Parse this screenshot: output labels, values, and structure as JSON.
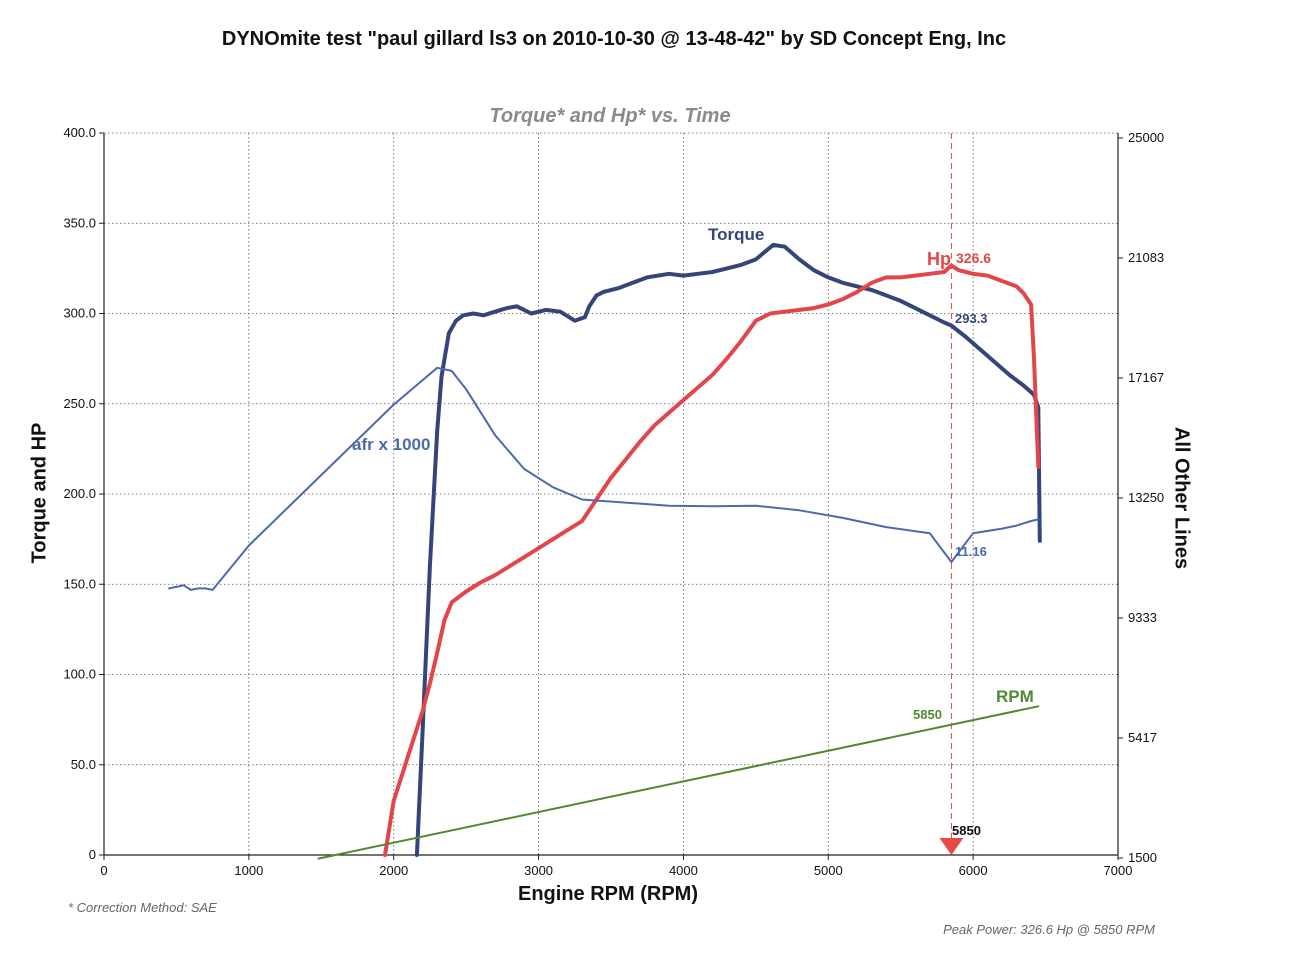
{
  "page": {
    "title": "DYNOmite test \"paul gillard ls3 on 2010-10-30 @ 13-48-42\" by SD Concept Eng, Inc",
    "footnote": "* Correction Method: SAE",
    "peak_note": "Peak Power: 326.6 Hp @ 5850 RPM"
  },
  "chart_data": {
    "type": "line",
    "title": "DYNOmite test \"paul gillard ls3 on 2010-10-30 @ 13-48-42\" by SD Concept Eng, Inc",
    "subtitle": "Torque* and Hp* vs. Time",
    "xlabel": "Engine RPM (RPM)",
    "ylabel": "Torque and HP",
    "ylabel_right": "All Other Lines",
    "xlim": [
      0,
      7000
    ],
    "ylim": [
      0,
      400
    ],
    "ylim_right": [
      1500,
      25000
    ],
    "x_ticks": [
      "0",
      "1000",
      "2000",
      "3000",
      "4000",
      "5000",
      "6000",
      "7000"
    ],
    "y_ticks": [
      "0",
      "50.0",
      "100.0",
      "150.0",
      "200.0",
      "250.0",
      "300.0",
      "350.0",
      "400.0"
    ],
    "y_right_ticks": [
      "1500",
      "5417",
      "9333",
      "13250",
      "17167",
      "21083",
      "25000"
    ],
    "grid": true,
    "colors": {
      "torque": "#34457a",
      "hp": "#e2464a",
      "afr": "#4a6aad",
      "rpm": "#4e8a2f",
      "marker": "#e84848"
    },
    "series": [
      {
        "name": "Torque",
        "axis": "left",
        "x": [
          2160,
          2200,
          2250,
          2300,
          2330,
          2380,
          2430,
          2480,
          2550,
          2620,
          2700,
          2780,
          2850,
          2950,
          3050,
          3150,
          3250,
          3320,
          3350,
          3400,
          3450,
          3550,
          3650,
          3750,
          3900,
          4000,
          4100,
          4200,
          4300,
          4400,
          4500,
          4560,
          4620,
          4700,
          4800,
          4900,
          5000,
          5100,
          5200,
          5300,
          5400,
          5500,
          5600,
          5700,
          5800,
          5850,
          5950,
          6050,
          6150,
          6250,
          6350,
          6420,
          6450,
          6460
        ],
        "values": [
          0,
          70,
          160,
          235,
          265,
          289,
          296,
          299,
          300,
          299,
          301,
          303,
          304,
          300,
          302,
          301,
          296,
          298,
          304,
          310,
          312,
          314,
          317,
          320,
          322,
          321,
          322,
          323,
          325,
          327,
          330,
          334,
          338,
          337,
          330,
          324,
          320,
          317,
          315,
          313,
          310,
          307,
          303,
          299,
          295,
          293.3,
          287,
          280,
          273,
          266,
          260,
          255,
          248,
          174
        ]
      },
      {
        "name": "Hp",
        "axis": "left",
        "x": [
          1940,
          2000,
          2100,
          2200,
          2250,
          2300,
          2350,
          2400,
          2450,
          2500,
          2600,
          2700,
          2800,
          2900,
          3000,
          3100,
          3200,
          3300,
          3400,
          3500,
          3600,
          3700,
          3800,
          3900,
          4000,
          4100,
          4200,
          4300,
          4400,
          4500,
          4600,
          4700,
          4800,
          4900,
          5000,
          5100,
          5200,
          5300,
          5400,
          5500,
          5600,
          5700,
          5800,
          5850,
          5900,
          6000,
          6100,
          6200,
          6300,
          6350,
          6400,
          6420,
          6450
        ],
        "values": [
          0,
          30,
          55,
          80,
          95,
          112,
          130,
          140,
          143,
          146,
          151,
          155,
          160,
          165,
          170,
          175,
          180,
          185,
          197,
          209,
          219,
          229,
          238,
          245,
          252,
          259,
          266,
          275,
          285,
          296,
          300,
          301,
          302,
          303,
          305,
          308,
          312,
          317,
          320,
          320,
          321,
          322,
          323,
          326.6,
          324,
          322,
          321,
          318,
          315,
          311,
          305,
          275,
          215
        ]
      },
      {
        "name": "afr x 1000",
        "axis": "right",
        "x": [
          450,
          500,
          550,
          600,
          650,
          700,
          750,
          1000,
          1500,
          2000,
          2300,
          2400,
          2500,
          2700,
          2900,
          3100,
          3300,
          3600,
          3900,
          4200,
          4500,
          4800,
          5100,
          5400,
          5700,
          5850,
          6000,
          6200,
          6300,
          6400,
          6450
        ],
        "values": [
          10.3,
          10.35,
          10.4,
          10.25,
          10.3,
          10.3,
          10.25,
          11.7,
          14.0,
          16.3,
          17.5,
          17.4,
          16.8,
          15.3,
          14.2,
          13.6,
          13.2,
          13.1,
          13.0,
          12.98,
          13.0,
          12.85,
          12.6,
          12.3,
          12.1,
          11.16,
          12.1,
          12.25,
          12.35,
          12.5,
          12.55
        ]
      },
      {
        "name": "RPM",
        "axis": "right",
        "x": [
          1480,
          6450
        ],
        "values": [
          1480,
          6450
        ]
      }
    ],
    "annotations": [
      {
        "label": "Torque",
        "series": "Torque"
      },
      {
        "label": "Hp",
        "value": "326.6",
        "series": "Hp"
      },
      {
        "label": "293.3",
        "series": "Torque"
      },
      {
        "label": "afr x 1000",
        "series": "afr x 1000"
      },
      {
        "label": "11.16",
        "series": "afr x 1000"
      },
      {
        "label": "RPM",
        "series": "RPM"
      },
      {
        "label": "5850",
        "series": "RPM"
      },
      {
        "label": "5850",
        "series": "marker"
      }
    ],
    "marker_rpm": 5850
  }
}
